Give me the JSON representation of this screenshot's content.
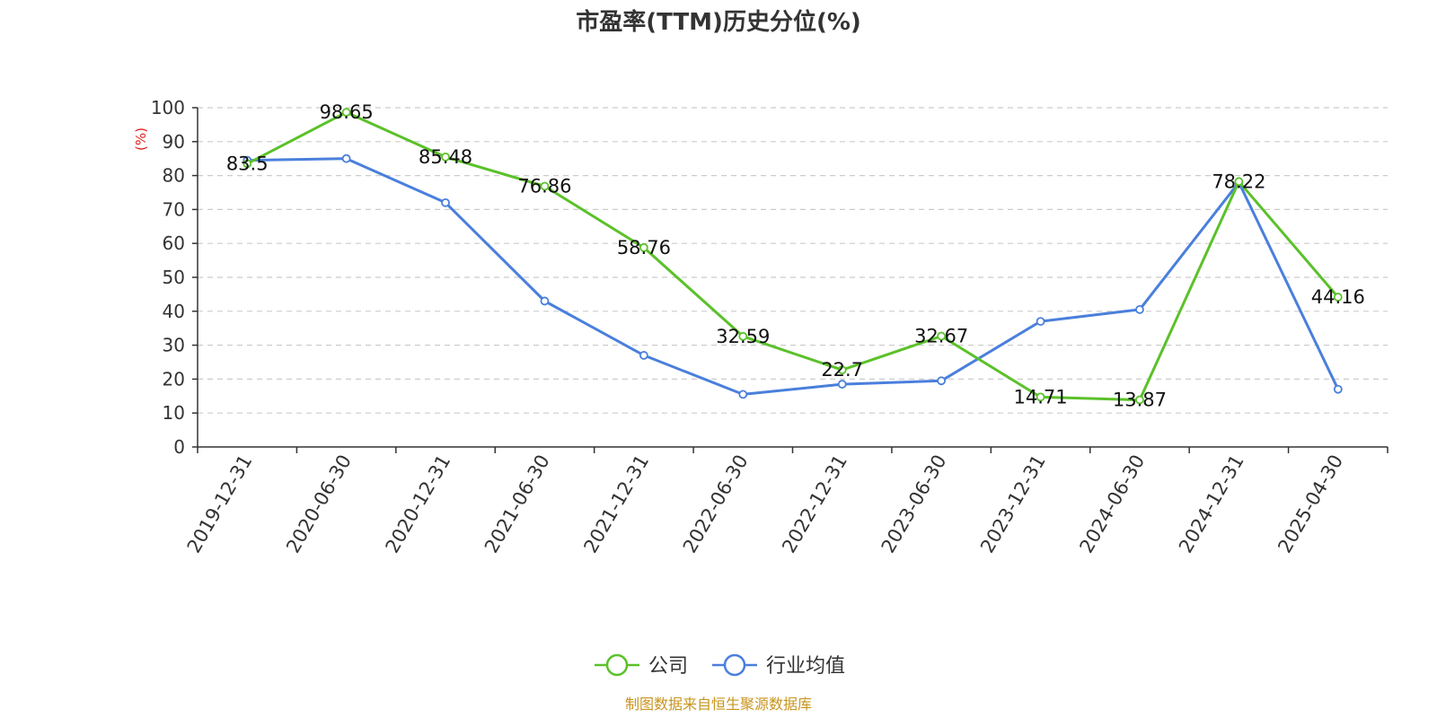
{
  "chart_data": {
    "type": "line",
    "title": "市盈率(TTM)历史分位(%)",
    "ylabel": "(%)",
    "ylim": [
      0,
      100
    ],
    "yticks": [
      0,
      10,
      20,
      30,
      40,
      50,
      60,
      70,
      80,
      90,
      100
    ],
    "grid": true,
    "legend_position": "bottom",
    "categories": [
      "2019-12-31",
      "2020-06-30",
      "2020-12-31",
      "2021-06-30",
      "2021-12-31",
      "2022-06-30",
      "2022-12-31",
      "2023-06-30",
      "2023-12-31",
      "2024-06-30",
      "2024-12-31",
      "2025-04-30"
    ],
    "series": [
      {
        "name": "公司",
        "color": "#5bc12a",
        "values": [
          83.5,
          98.65,
          85.48,
          76.86,
          58.76,
          32.59,
          22.7,
          32.67,
          14.71,
          13.87,
          78.22,
          44.16
        ],
        "labels": [
          "83.5",
          "98.65",
          "85.48",
          "76.86",
          "58.76",
          "32.59",
          "22.7",
          "32.67",
          "14.71",
          "13.87",
          "78.22",
          "44.16"
        ]
      },
      {
        "name": "行业均值",
        "color": "#4a7fdc",
        "values": [
          84.5,
          85,
          72,
          43,
          27,
          15.5,
          18.5,
          19.5,
          37,
          40.5,
          78,
          17
        ]
      }
    ],
    "source": "制图数据来自恒生聚源数据库",
    "source_color": "#c8951e",
    "ylabel_color": "#e02020"
  }
}
